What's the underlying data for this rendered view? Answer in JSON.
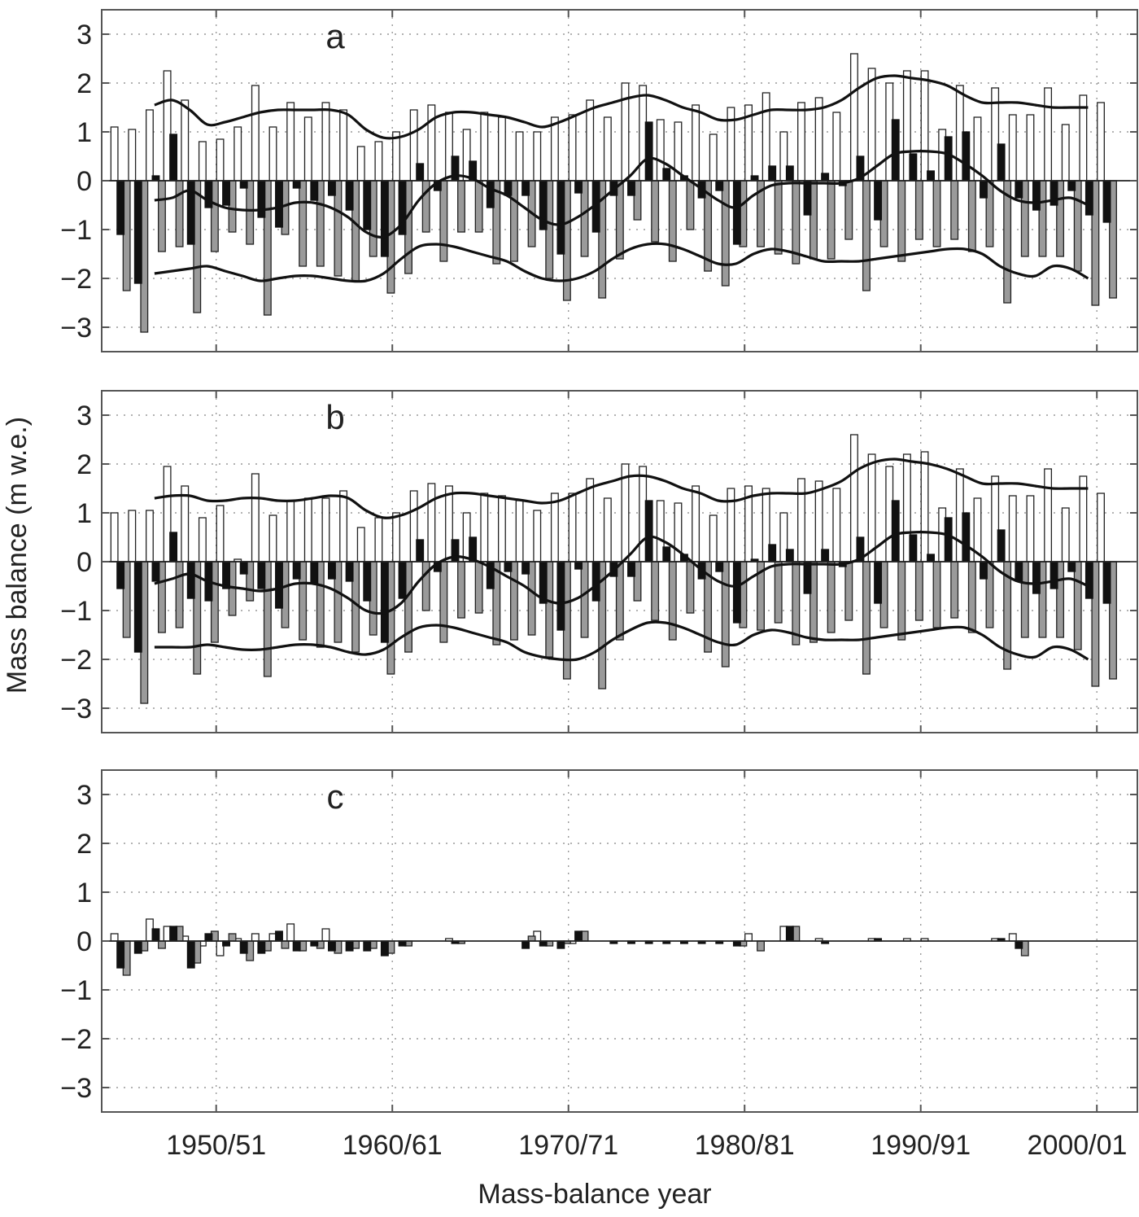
{
  "chart_data": {
    "type": "bar",
    "ylabel": "Mass balance (m w.e.)",
    "xlabel": "Mass-balance year",
    "x_tick_labels": [
      "1950/51",
      "1960/61",
      "1970/71",
      "1980/81",
      "1990/91",
      "2000/01"
    ],
    "x_tick_years": [
      1950,
      1960,
      1970,
      1980,
      1990,
      2000
    ],
    "xlim": [
      1944,
      2002.8
    ],
    "ylim": [
      -3.5,
      3.5
    ],
    "yticks": [
      -3,
      -2,
      -1,
      0,
      1,
      2,
      3
    ],
    "grid": true,
    "colors": {
      "winter": "#ffffff",
      "net": "#111111",
      "summer": "#9a9a9a",
      "line": "#111111"
    },
    "panels": [
      {
        "label": "a",
        "years": [
          1945,
          1946,
          1947,
          1948,
          1949,
          1950,
          1951,
          1952,
          1953,
          1954,
          1955,
          1956,
          1957,
          1958,
          1959,
          1960,
          1961,
          1962,
          1963,
          1964,
          1965,
          1966,
          1967,
          1968,
          1969,
          1970,
          1971,
          1972,
          1973,
          1974,
          1975,
          1976,
          1977,
          1978,
          1979,
          1980,
          1981,
          1982,
          1983,
          1984,
          1985,
          1986,
          1987,
          1988,
          1989,
          1990,
          1991,
          1992,
          1993,
          1994,
          1995,
          1996,
          1997,
          1998,
          1999,
          2000,
          2001
        ],
        "winter": [
          1.1,
          1.05,
          1.45,
          2.25,
          1.65,
          0.8,
          0.85,
          1.1,
          1.95,
          1.1,
          1.6,
          1.3,
          1.6,
          1.45,
          0.7,
          0.8,
          1.0,
          1.45,
          1.55,
          1.4,
          1.05,
          1.4,
          1.3,
          1.0,
          1.0,
          1.3,
          1.35,
          1.65,
          1.3,
          2.0,
          1.95,
          1.25,
          1.2,
          1.55,
          0.95,
          1.5,
          1.55,
          1.8,
          1.0,
          1.6,
          1.7,
          1.4,
          2.6,
          2.3,
          2.0,
          2.25,
          2.25,
          1.05,
          1.95,
          1.3,
          1.9,
          1.35,
          1.35,
          1.9,
          1.15,
          1.75,
          1.6
        ],
        "net": [
          -1.1,
          -2.1,
          0.1,
          0.95,
          -1.3,
          -0.55,
          -0.5,
          -0.15,
          -0.75,
          -0.95,
          -0.15,
          -0.4,
          -0.3,
          -0.6,
          -1.0,
          -1.55,
          -1.1,
          0.35,
          -0.2,
          0.5,
          0.4,
          -0.55,
          -0.3,
          -0.3,
          -1.0,
          -1.5,
          -0.25,
          -1.05,
          -0.3,
          -0.3,
          1.2,
          0.25,
          0.1,
          -0.35,
          -0.2,
          -1.3,
          0.1,
          0.3,
          0.3,
          -0.7,
          0.15,
          -0.1,
          0.5,
          -0.8,
          1.25,
          0.55,
          0.2,
          0.9,
          1.0,
          -0.35,
          0.75,
          -0.35,
          -0.6,
          -0.5,
          -0.2,
          -0.7,
          -0.85
        ],
        "summer": [
          -2.25,
          -3.1,
          -1.45,
          -1.35,
          -2.7,
          -1.45,
          -1.05,
          -1.3,
          -2.75,
          -1.1,
          -1.75,
          -1.75,
          -1.95,
          -2.05,
          -1.55,
          -2.3,
          -1.9,
          -1.05,
          -1.65,
          -1.05,
          -1.05,
          -1.7,
          -1.65,
          -1.35,
          -2.0,
          -2.45,
          -1.55,
          -2.4,
          -1.6,
          -0.8,
          -1.25,
          -1.65,
          -1.0,
          -1.85,
          -2.15,
          -1.35,
          -1.35,
          -1.5,
          -1.7,
          -1.6,
          -1.6,
          -1.2,
          -2.25,
          -1.35,
          -1.65,
          -1.2,
          -1.35,
          -1.2,
          -1.45,
          -1.35,
          -2.5,
          -1.55,
          -1.55,
          -1.55,
          -1.85,
          -2.55,
          -2.4
        ],
        "smooth_years": [
          1947,
          1948,
          1949,
          1950,
          1951,
          1952,
          1953,
          1954,
          1955,
          1956,
          1957,
          1958,
          1959,
          1960,
          1961,
          1962,
          1963,
          1964,
          1965,
          1966,
          1967,
          1968,
          1969,
          1970,
          1971,
          1972,
          1973,
          1974,
          1975,
          1976,
          1977,
          1978,
          1979,
          1980,
          1981,
          1982,
          1983,
          1984,
          1985,
          1986,
          1987,
          1988,
          1989,
          1990,
          1991,
          1992,
          1993,
          1994,
          1995,
          1996,
          1997,
          1998,
          1999,
          2000
        ],
        "smooth_winter": [
          1.55,
          1.65,
          1.45,
          1.15,
          1.2,
          1.3,
          1.4,
          1.45,
          1.45,
          1.45,
          1.45,
          1.35,
          1.05,
          0.88,
          0.9,
          1.05,
          1.3,
          1.4,
          1.4,
          1.35,
          1.3,
          1.2,
          1.1,
          1.2,
          1.35,
          1.5,
          1.6,
          1.7,
          1.75,
          1.65,
          1.5,
          1.4,
          1.25,
          1.25,
          1.35,
          1.45,
          1.45,
          1.45,
          1.5,
          1.65,
          1.9,
          2.1,
          2.15,
          2.1,
          2.05,
          1.95,
          1.75,
          1.6,
          1.6,
          1.6,
          1.55,
          1.5,
          1.5,
          1.5
        ],
        "smooth_net": [
          -0.4,
          -0.35,
          -0.2,
          -0.4,
          -0.55,
          -0.6,
          -0.6,
          -0.55,
          -0.45,
          -0.45,
          -0.55,
          -0.75,
          -1.05,
          -1.15,
          -0.9,
          -0.4,
          -0.05,
          0.1,
          0.05,
          -0.15,
          -0.3,
          -0.55,
          -0.8,
          -0.9,
          -0.75,
          -0.5,
          -0.2,
          0.1,
          0.45,
          0.35,
          0.1,
          -0.15,
          -0.4,
          -0.55,
          -0.3,
          -0.1,
          -0.05,
          -0.05,
          -0.05,
          -0.05,
          0.05,
          0.3,
          0.55,
          0.6,
          0.6,
          0.55,
          0.35,
          0.1,
          -0.2,
          -0.4,
          -0.45,
          -0.4,
          -0.35,
          -0.5
        ],
        "smooth_summer": [
          -1.9,
          -1.85,
          -1.8,
          -1.75,
          -1.85,
          -1.95,
          -2.05,
          -2.0,
          -1.95,
          -1.95,
          -2.0,
          -2.05,
          -2.05,
          -1.9,
          -1.6,
          -1.35,
          -1.3,
          -1.35,
          -1.45,
          -1.55,
          -1.65,
          -1.85,
          -2.0,
          -2.05,
          -2.0,
          -1.85,
          -1.6,
          -1.4,
          -1.3,
          -1.3,
          -1.4,
          -1.55,
          -1.7,
          -1.7,
          -1.5,
          -1.4,
          -1.45,
          -1.55,
          -1.65,
          -1.65,
          -1.65,
          -1.6,
          -1.55,
          -1.5,
          -1.45,
          -1.4,
          -1.4,
          -1.5,
          -1.75,
          -1.9,
          -1.95,
          -1.75,
          -1.8,
          -2.0
        ]
      },
      {
        "label": "b",
        "years": [
          1945,
          1946,
          1947,
          1948,
          1949,
          1950,
          1951,
          1952,
          1953,
          1954,
          1955,
          1956,
          1957,
          1958,
          1959,
          1960,
          1961,
          1962,
          1963,
          1964,
          1965,
          1966,
          1967,
          1968,
          1969,
          1970,
          1971,
          1972,
          1973,
          1974,
          1975,
          1976,
          1977,
          1978,
          1979,
          1980,
          1981,
          1982,
          1983,
          1984,
          1985,
          1986,
          1987,
          1988,
          1989,
          1990,
          1991,
          1992,
          1993,
          1994,
          1995,
          1996,
          1997,
          1998,
          1999,
          2000,
          2001
        ],
        "winter": [
          1.0,
          1.05,
          1.05,
          1.95,
          1.55,
          0.9,
          1.15,
          0.05,
          1.8,
          0.95,
          1.25,
          1.3,
          1.3,
          1.45,
          0.7,
          0.9,
          1.0,
          1.45,
          1.6,
          1.55,
          1.0,
          1.4,
          1.35,
          1.25,
          1.05,
          1.4,
          1.4,
          1.7,
          1.3,
          2.0,
          1.95,
          1.25,
          1.2,
          1.55,
          0.95,
          1.5,
          1.55,
          1.5,
          1.0,
          1.7,
          1.65,
          1.5,
          2.6,
          2.2,
          1.95,
          2.2,
          2.25,
          1.1,
          1.9,
          1.3,
          1.75,
          1.35,
          1.35,
          1.9,
          1.1,
          1.75,
          1.4
        ],
        "net": [
          -0.55,
          -1.85,
          -0.4,
          0.6,
          -0.75,
          -0.8,
          -0.55,
          -0.25,
          -0.55,
          -0.95,
          -0.35,
          -0.45,
          -0.35,
          -0.4,
          -0.8,
          -1.65,
          -0.75,
          0.45,
          -0.2,
          0.45,
          0.5,
          -0.55,
          -0.2,
          -0.25,
          -0.85,
          -1.4,
          -0.15,
          -0.8,
          -0.3,
          -0.3,
          1.25,
          0.3,
          0.15,
          -0.35,
          -0.2,
          -1.25,
          0.05,
          0.35,
          0.25,
          -0.65,
          0.25,
          -0.1,
          0.5,
          -0.85,
          1.25,
          0.55,
          0.15,
          0.9,
          1.0,
          -0.35,
          0.65,
          -0.4,
          -0.65,
          -0.55,
          -0.2,
          -0.75,
          -0.85
        ],
        "summer": [
          -1.55,
          -2.9,
          -1.45,
          -1.35,
          -2.3,
          -1.65,
          -1.1,
          -0.8,
          -2.35,
          -1.35,
          -1.6,
          -1.75,
          -1.65,
          -1.85,
          -1.5,
          -2.3,
          -1.85,
          -1.0,
          -1.65,
          -1.15,
          -1.05,
          -1.7,
          -1.6,
          -1.5,
          -1.95,
          -2.4,
          -1.55,
          -2.6,
          -1.6,
          -0.8,
          -1.2,
          -1.6,
          -1.05,
          -1.85,
          -2.15,
          -1.35,
          -1.4,
          -1.25,
          -1.7,
          -1.65,
          -1.45,
          -1.2,
          -2.3,
          -1.35,
          -1.6,
          -1.2,
          -1.35,
          -1.15,
          -1.45,
          -1.35,
          -2.2,
          -1.55,
          -1.55,
          -1.55,
          -1.8,
          -2.55,
          -2.4
        ],
        "smooth_years": [
          1947,
          1948,
          1949,
          1950,
          1951,
          1952,
          1953,
          1954,
          1955,
          1956,
          1957,
          1958,
          1959,
          1960,
          1961,
          1962,
          1963,
          1964,
          1965,
          1966,
          1967,
          1968,
          1969,
          1970,
          1971,
          1972,
          1973,
          1974,
          1975,
          1976,
          1977,
          1978,
          1979,
          1980,
          1981,
          1982,
          1983,
          1984,
          1985,
          1986,
          1987,
          1988,
          1989,
          1990,
          1991,
          1992,
          1993,
          1994,
          1995,
          1996,
          1997,
          1998,
          1999,
          2000
        ],
        "smooth_winter": [
          1.3,
          1.35,
          1.35,
          1.25,
          1.25,
          1.3,
          1.3,
          1.25,
          1.25,
          1.3,
          1.35,
          1.3,
          1.05,
          0.9,
          0.95,
          1.1,
          1.3,
          1.4,
          1.4,
          1.35,
          1.3,
          1.25,
          1.2,
          1.25,
          1.4,
          1.55,
          1.65,
          1.75,
          1.75,
          1.65,
          1.5,
          1.4,
          1.25,
          1.25,
          1.35,
          1.4,
          1.4,
          1.4,
          1.5,
          1.65,
          1.9,
          2.05,
          2.1,
          2.05,
          2.0,
          1.9,
          1.75,
          1.6,
          1.6,
          1.6,
          1.55,
          1.5,
          1.5,
          1.5
        ],
        "smooth_net": [
          -0.45,
          -0.35,
          -0.25,
          -0.4,
          -0.5,
          -0.55,
          -0.6,
          -0.55,
          -0.45,
          -0.45,
          -0.55,
          -0.75,
          -1.0,
          -1.05,
          -0.85,
          -0.4,
          -0.05,
          0.1,
          0.05,
          -0.1,
          -0.3,
          -0.5,
          -0.75,
          -0.85,
          -0.75,
          -0.5,
          -0.2,
          0.15,
          0.5,
          0.4,
          0.15,
          -0.15,
          -0.4,
          -0.5,
          -0.3,
          -0.1,
          -0.05,
          -0.05,
          -0.05,
          -0.05,
          0.05,
          0.3,
          0.55,
          0.6,
          0.6,
          0.55,
          0.35,
          0.1,
          -0.2,
          -0.4,
          -0.45,
          -0.4,
          -0.35,
          -0.5
        ],
        "smooth_summer": [
          -1.75,
          -1.75,
          -1.75,
          -1.7,
          -1.75,
          -1.8,
          -1.8,
          -1.75,
          -1.7,
          -1.7,
          -1.75,
          -1.85,
          -1.9,
          -1.8,
          -1.55,
          -1.35,
          -1.3,
          -1.35,
          -1.45,
          -1.55,
          -1.65,
          -1.85,
          -1.95,
          -2.0,
          -2.0,
          -1.85,
          -1.6,
          -1.4,
          -1.25,
          -1.25,
          -1.35,
          -1.5,
          -1.65,
          -1.7,
          -1.5,
          -1.4,
          -1.45,
          -1.55,
          -1.6,
          -1.6,
          -1.6,
          -1.55,
          -1.5,
          -1.45,
          -1.4,
          -1.35,
          -1.35,
          -1.5,
          -1.75,
          -1.9,
          -1.95,
          -1.75,
          -1.8,
          -2.0
        ]
      },
      {
        "label": "c",
        "years": [
          1945,
          1946,
          1947,
          1948,
          1949,
          1950,
          1951,
          1952,
          1953,
          1954,
          1955,
          1956,
          1957,
          1958,
          1959,
          1960,
          1961,
          1962,
          1963,
          1964,
          1965,
          1966,
          1967,
          1968,
          1969,
          1970,
          1971,
          1972,
          1973,
          1974,
          1975,
          1976,
          1977,
          1978,
          1979,
          1980,
          1981,
          1982,
          1983,
          1984,
          1985,
          1986,
          1987,
          1988,
          1989,
          1990,
          1991,
          1992,
          1993,
          1994,
          1995,
          1996,
          1997,
          1998,
          1999,
          2000,
          2001
        ],
        "winter": [
          0.15,
          0.0,
          0.45,
          0.3,
          0.1,
          -0.1,
          -0.3,
          0.05,
          0.15,
          0.15,
          0.35,
          0.0,
          0.25,
          0.0,
          0.0,
          0.0,
          0.0,
          0.0,
          0.0,
          0.05,
          0.0,
          0.0,
          0.0,
          0.0,
          0.2,
          0.0,
          -0.05,
          0.0,
          0.0,
          0.0,
          0.0,
          0.0,
          0.0,
          0.0,
          0.0,
          0.0,
          0.15,
          0.0,
          0.3,
          0.0,
          0.05,
          0.0,
          0.0,
          0.05,
          0.0,
          0.05,
          0.05,
          0.0,
          0.0,
          0.0,
          0.05,
          0.15,
          0.0,
          0.0,
          0.0,
          0.0,
          0.0
        ],
        "net": [
          -0.55,
          -0.25,
          0.25,
          0.3,
          -0.55,
          0.15,
          -0.1,
          -0.25,
          -0.25,
          0.2,
          -0.2,
          -0.1,
          -0.2,
          -0.2,
          -0.2,
          -0.3,
          -0.1,
          0.0,
          0.0,
          -0.05,
          0.0,
          0.0,
          0.0,
          -0.15,
          -0.1,
          -0.15,
          0.2,
          0.0,
          -0.05,
          -0.05,
          -0.05,
          -0.05,
          -0.05,
          -0.05,
          -0.05,
          -0.1,
          0.0,
          0.0,
          0.3,
          0.0,
          -0.05,
          0.0,
          0.0,
          0.05,
          0.0,
          0.0,
          0.0,
          0.0,
          0.0,
          0.0,
          0.05,
          -0.15,
          0.0,
          0.0,
          0.0,
          0.0,
          0.0
        ],
        "summer": [
          -0.7,
          -0.2,
          -0.15,
          0.3,
          -0.45,
          0.2,
          0.15,
          -0.4,
          -0.2,
          -0.15,
          -0.2,
          -0.15,
          -0.25,
          -0.15,
          -0.15,
          -0.25,
          -0.1,
          0.0,
          0.0,
          -0.05,
          0.0,
          0.0,
          0.0,
          0.1,
          -0.1,
          -0.05,
          0.2,
          0.0,
          0.0,
          0.0,
          0.0,
          0.0,
          0.0,
          0.0,
          0.0,
          -0.1,
          -0.2,
          0.0,
          0.3,
          0.0,
          0.0,
          0.0,
          0.0,
          0.0,
          0.0,
          0.0,
          0.0,
          0.0,
          0.0,
          0.0,
          0.0,
          -0.3,
          0.0,
          0.0,
          0.0,
          0.0,
          0.0
        ]
      }
    ]
  }
}
